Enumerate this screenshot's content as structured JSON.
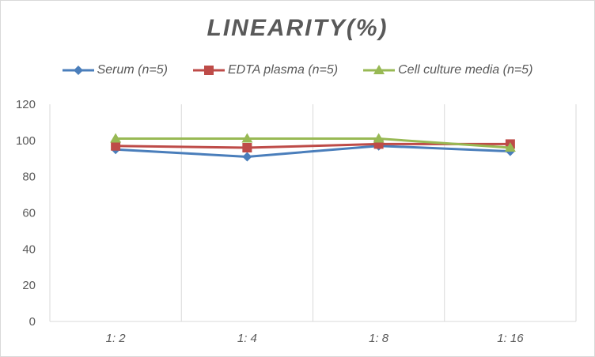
{
  "chart_data": {
    "type": "line",
    "title": "LINEARITY(%)",
    "categories": [
      "1:2",
      "1:4",
      "1:8",
      "1:16"
    ],
    "ylim": [
      0,
      120
    ],
    "yticks": [
      0,
      20,
      40,
      60,
      80,
      100,
      120
    ],
    "grid": "vertical",
    "legend": "top",
    "series": [
      {
        "name": "Serum (n=5)",
        "values": [
          95,
          91,
          97,
          94
        ],
        "color": "#4a7ebb",
        "marker": "diamond"
      },
      {
        "name": "EDTA plasma (n=5)",
        "values": [
          97,
          96,
          98,
          98
        ],
        "color": "#be4b48",
        "marker": "square"
      },
      {
        "name": "Cell culture media (n=5)",
        "values": [
          101,
          101,
          101,
          96
        ],
        "color": "#98b954",
        "marker": "triangle"
      }
    ]
  }
}
